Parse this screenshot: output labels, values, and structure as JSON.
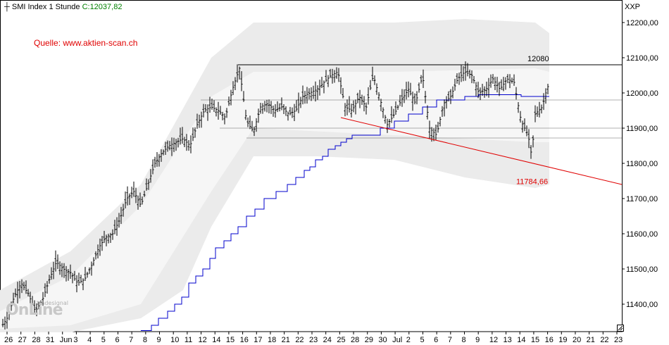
{
  "header": {
    "marker": "┼",
    "instrument": "SMI Index",
    "interval": "1 Stunde",
    "close_label": "C:12037,82"
  },
  "source_text": "Quelle: www.aktien-scan.ch",
  "currency": "XXP",
  "watermark": {
    "brand": "OnLine",
    "sub": "tradesignal"
  },
  "colors": {
    "price_bars": "#000000",
    "trailing_stop": "#0000cc",
    "trendline": "#e00000",
    "band": "#ebebeb",
    "levels": "#000000"
  },
  "chart_data": {
    "type": "ohlc",
    "ylim": [
      11320,
      12260
    ],
    "y_ticks": [
      "12200,00",
      "12100,00",
      "12000,00",
      "11900,00",
      "11800,00",
      "11700,00",
      "11600,00",
      "11500,00",
      "11400,00"
    ],
    "x_ticks": [
      "26",
      "27",
      "28",
      "31",
      "Jun",
      "3",
      "4",
      "5",
      "6",
      "7",
      "8",
      "9",
      "10",
      "11",
      "12",
      "14",
      "15",
      "16",
      "17",
      "18",
      "21",
      "22",
      "23",
      "24",
      "25",
      "28",
      "29",
      "30",
      "Jul",
      "2",
      "5",
      "6",
      "7",
      "8",
      "9",
      "12",
      "13",
      "14",
      "15",
      "16",
      "19",
      "20",
      "21",
      "22",
      "23"
    ],
    "price_path": [
      [
        0,
        11330
      ],
      [
        10,
        11360
      ],
      [
        20,
        11420
      ],
      [
        30,
        11460
      ],
      [
        40,
        11430
      ],
      [
        50,
        11380
      ],
      [
        60,
        11410
      ],
      [
        70,
        11470
      ],
      [
        80,
        11520
      ],
      [
        90,
        11500
      ],
      [
        100,
        11490
      ],
      [
        110,
        11460
      ],
      [
        120,
        11470
      ],
      [
        130,
        11510
      ],
      [
        140,
        11560
      ],
      [
        150,
        11590
      ],
      [
        160,
        11600
      ],
      [
        170,
        11640
      ],
      [
        180,
        11700
      ],
      [
        190,
        11720
      ],
      [
        200,
        11680
      ],
      [
        210,
        11740
      ],
      [
        220,
        11800
      ],
      [
        230,
        11830
      ],
      [
        240,
        11850
      ],
      [
        250,
        11860
      ],
      [
        260,
        11870
      ],
      [
        270,
        11850
      ],
      [
        280,
        11910
      ],
      [
        290,
        11950
      ],
      [
        300,
        11960
      ],
      [
        310,
        11950
      ],
      [
        320,
        11930
      ],
      [
        330,
        12010
      ],
      [
        340,
        12070
      ],
      [
        350,
        11920
      ],
      [
        360,
        11890
      ],
      [
        370,
        11960
      ],
      [
        380,
        11970
      ],
      [
        390,
        11950
      ],
      [
        400,
        11960
      ],
      [
        410,
        11940
      ],
      [
        420,
        11950
      ],
      [
        430,
        11990
      ],
      [
        440,
        12000
      ],
      [
        450,
        12010
      ],
      [
        460,
        12030
      ],
      [
        470,
        12050
      ],
      [
        480,
        12060
      ],
      [
        490,
        11960
      ],
      [
        500,
        11950
      ],
      [
        510,
        11990
      ],
      [
        520,
        11960
      ],
      [
        530,
        12050
      ],
      [
        540,
        11980
      ],
      [
        550,
        11910
      ],
      [
        560,
        11940
      ],
      [
        570,
        11980
      ],
      [
        580,
        12010
      ],
      [
        590,
        11970
      ],
      [
        600,
        12050
      ],
      [
        610,
        11900
      ],
      [
        620,
        11880
      ],
      [
        630,
        11970
      ],
      [
        640,
        11990
      ],
      [
        650,
        12040
      ],
      [
        660,
        12060
      ],
      [
        670,
        12050
      ],
      [
        680,
        12000
      ],
      [
        690,
        12010
      ],
      [
        700,
        12040
      ],
      [
        710,
        12010
      ],
      [
        720,
        12040
      ],
      [
        730,
        12030
      ],
      [
        740,
        11920
      ],
      [
        750,
        11880
      ],
      [
        755,
        11820
      ],
      [
        760,
        11940
      ],
      [
        770,
        11960
      ],
      [
        775,
        12000
      ],
      [
        780,
        12030
      ]
    ],
    "trailing_stop": [
      [
        200,
        11325
      ],
      [
        215,
        11325
      ],
      [
        215,
        11340
      ],
      [
        225,
        11340
      ],
      [
        225,
        11360
      ],
      [
        238,
        11360
      ],
      [
        238,
        11380
      ],
      [
        248,
        11380
      ],
      [
        248,
        11400
      ],
      [
        258,
        11400
      ],
      [
        258,
        11420
      ],
      [
        268,
        11420
      ],
      [
        268,
        11460
      ],
      [
        278,
        11460
      ],
      [
        278,
        11480
      ],
      [
        288,
        11480
      ],
      [
        288,
        11500
      ],
      [
        298,
        11500
      ],
      [
        298,
        11530
      ],
      [
        306,
        11530
      ],
      [
        306,
        11560
      ],
      [
        318,
        11560
      ],
      [
        318,
        11580
      ],
      [
        328,
        11580
      ],
      [
        328,
        11600
      ],
      [
        338,
        11600
      ],
      [
        338,
        11620
      ],
      [
        350,
        11620
      ],
      [
        350,
        11650
      ],
      [
        362,
        11650
      ],
      [
        362,
        11670
      ],
      [
        375,
        11670
      ],
      [
        375,
        11700
      ],
      [
        392,
        11700
      ],
      [
        392,
        11720
      ],
      [
        408,
        11720
      ],
      [
        408,
        11740
      ],
      [
        420,
        11740
      ],
      [
        420,
        11760
      ],
      [
        432,
        11760
      ],
      [
        432,
        11780
      ],
      [
        440,
        11780
      ],
      [
        440,
        11790
      ],
      [
        448,
        11790
      ],
      [
        448,
        11810
      ],
      [
        458,
        11810
      ],
      [
        458,
        11820
      ],
      [
        466,
        11820
      ],
      [
        466,
        11840
      ],
      [
        476,
        11840
      ],
      [
        476,
        11850
      ],
      [
        484,
        11850
      ],
      [
        484,
        11860
      ],
      [
        492,
        11860
      ],
      [
        492,
        11870
      ],
      [
        500,
        11870
      ],
      [
        500,
        11880
      ],
      [
        540,
        11880
      ],
      [
        540,
        11900
      ],
      [
        560,
        11900
      ],
      [
        560,
        11920
      ],
      [
        580,
        11920
      ],
      [
        580,
        11940
      ],
      [
        600,
        11940
      ],
      [
        600,
        11960
      ],
      [
        620,
        11960
      ],
      [
        620,
        11980
      ],
      [
        660,
        11980
      ],
      [
        660,
        11990
      ],
      [
        680,
        11990
      ],
      [
        680,
        11995
      ],
      [
        740,
        11995
      ],
      [
        740,
        11990
      ],
      [
        780,
        11990
      ]
    ],
    "band_upper": [
      [
        0,
        11440
      ],
      [
        100,
        11550
      ],
      [
        200,
        11740
      ],
      [
        300,
        12100
      ],
      [
        360,
        12200
      ],
      [
        450,
        12200
      ],
      [
        560,
        12200
      ],
      [
        660,
        12210
      ],
      [
        760,
        12200
      ],
      [
        780,
        12170
      ]
    ],
    "band_lower": [
      [
        0,
        11320
      ],
      [
        100,
        11320
      ],
      [
        200,
        11360
      ],
      [
        260,
        11440
      ],
      [
        300,
        11620
      ],
      [
        360,
        11820
      ],
      [
        450,
        11820
      ],
      [
        560,
        11810
      ],
      [
        660,
        11760
      ],
      [
        760,
        11730
      ],
      [
        780,
        11740
      ]
    ],
    "band_mid_upper": [
      [
        0,
        11380
      ],
      [
        100,
        11480
      ],
      [
        200,
        11680
      ],
      [
        300,
        11990
      ],
      [
        360,
        12060
      ],
      [
        560,
        12060
      ],
      [
        760,
        12070
      ],
      [
        780,
        12060
      ]
    ],
    "band_mid_lower": [
      [
        0,
        11330
      ],
      [
        100,
        11340
      ],
      [
        200,
        11400
      ],
      [
        300,
        11720
      ],
      [
        360,
        11900
      ],
      [
        560,
        11880
      ],
      [
        760,
        11860
      ],
      [
        780,
        11860
      ]
    ],
    "levels": [
      {
        "value": 12080,
        "x_start": 338,
        "label": "12080"
      },
      {
        "value": 11980,
        "x_start": 285
      },
      {
        "value": 11900,
        "x_start": 312
      },
      {
        "value": 11872,
        "x_start": 350
      }
    ],
    "trendline": {
      "from": [
        484,
        11930
      ],
      "to": [
        883,
        11740
      ],
      "label": "11784,66",
      "label_at": [
        733,
        11784.66
      ]
    }
  }
}
